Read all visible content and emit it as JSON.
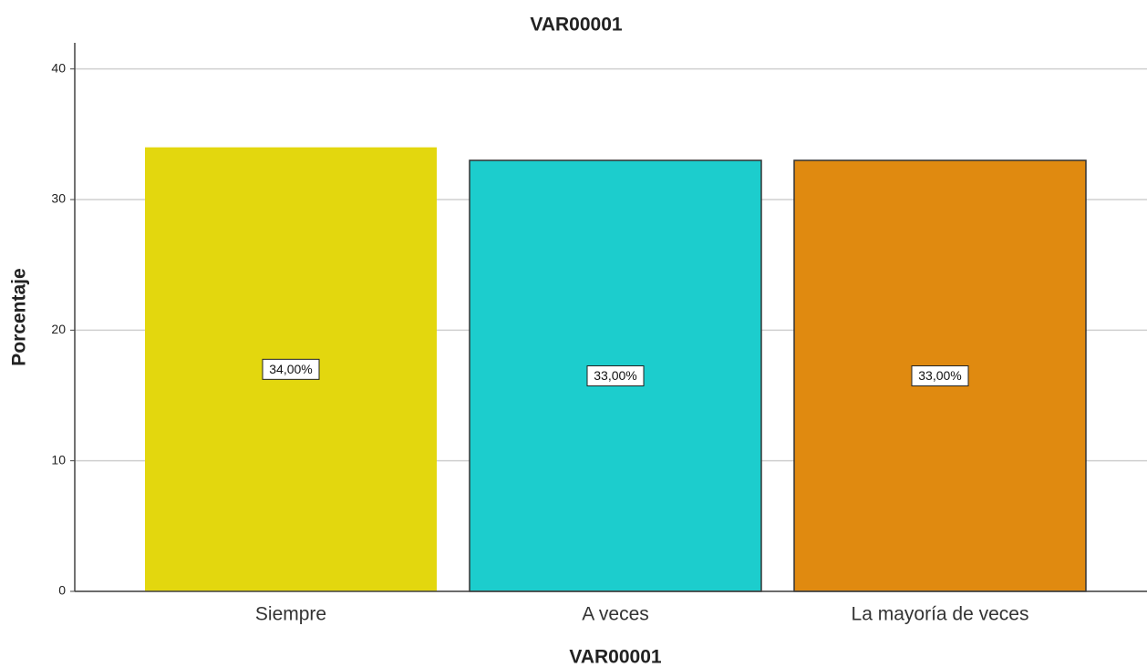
{
  "chart_data": {
    "type": "bar",
    "title": "VAR00001",
    "x_label": "VAR00001",
    "y_label": "Porcentaje",
    "categories": [
      "Siempre",
      "A veces",
      "La mayoría de veces"
    ],
    "values": [
      34,
      33,
      33
    ],
    "value_labels": [
      "34,00%",
      "33,00%",
      "33,00%"
    ],
    "colors": [
      "#e3d70e",
      "#1ccdcd",
      "#e08a10"
    ],
    "ylim": [
      0,
      42
    ],
    "yticks": [
      0,
      10,
      20,
      30,
      40
    ],
    "grid": true
  }
}
